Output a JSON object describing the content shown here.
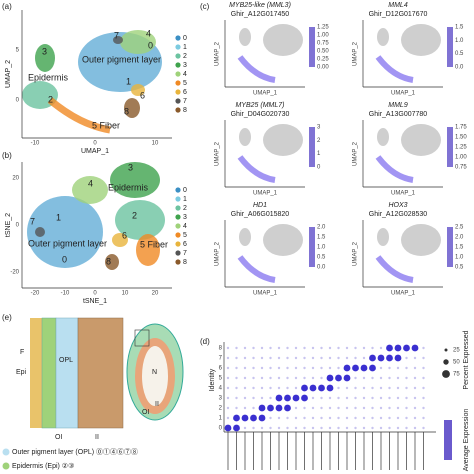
{
  "panel_a": {
    "label": "(a)",
    "ylabel": "UMAP_2",
    "xlabel": "UMAP_1",
    "xticks": [
      "-10",
      "0",
      "10"
    ],
    "yticks": [
      "5",
      "0"
    ],
    "annotations": [
      "3",
      "Epidermis",
      "Outer pigment layer",
      "7",
      "0",
      "4",
      "1",
      "2",
      "6",
      "8",
      "5 Fiber"
    ]
  },
  "panel_b": {
    "label": "(b)",
    "ylabel": "tSNE_2",
    "xlabel": "tSNE_1",
    "xticks": [
      "-20",
      "-10",
      "0",
      "10",
      "20"
    ],
    "yticks": [
      "20",
      "0",
      "-20"
    ],
    "annotations": [
      "3",
      "4",
      "Epidermis",
      "7",
      "1",
      "2",
      "Outer pigment layer",
      "0",
      "5 Fiber",
      "6",
      "8"
    ]
  },
  "clusters": [
    {
      "label": "0",
      "color": "#3b8fc4"
    },
    {
      "label": "1",
      "color": "#7ccbe0"
    },
    {
      "label": "2",
      "color": "#6cc3a0"
    },
    {
      "label": "3",
      "color": "#3fa34d"
    },
    {
      "label": "4",
      "color": "#9fd27a"
    },
    {
      "label": "5",
      "color": "#f08a24"
    },
    {
      "label": "6",
      "color": "#e8b43c"
    },
    {
      "label": "7",
      "color": "#555555"
    },
    {
      "label": "8",
      "color": "#8a5a2b"
    }
  ],
  "panel_c": {
    "label": "(c)",
    "ylabel": "UMAP_2",
    "xlabel": "UMAP_1",
    "plots": [
      {
        "gene": "MYB25-like (MML3)",
        "id": "Ghir_A12G017450",
        "scale": [
          "1.25",
          "1.00",
          "0.75",
          "0.50",
          "0.25",
          "0.00"
        ]
      },
      {
        "gene": "MML4",
        "id": "Ghir_D12G017670",
        "scale": [
          "1.5",
          "1.0",
          "0.5",
          "0.0"
        ]
      },
      {
        "gene": "MYB25 (MML7)",
        "id": "Ghir_D04G020730",
        "scale": [
          "3",
          "2",
          "1",
          "0"
        ]
      },
      {
        "gene": "MML9",
        "id": "Ghir_A13G007780",
        "scale": [
          "1.75",
          "1.50",
          "1.25",
          "1.00",
          "0.75"
        ]
      },
      {
        "gene": "HD1",
        "id": "Ghir_A06G015820",
        "scale": [
          "2.0",
          "1.5",
          "1.0",
          "0.5",
          "0.0"
        ]
      },
      {
        "gene": "HOX3",
        "id": "Ghir_A12G028530",
        "scale": [
          "2.5",
          "2.0",
          "1.5",
          "1.0",
          "0.5"
        ]
      }
    ]
  },
  "panel_d": {
    "label": "(d)",
    "ylabel": "Identity",
    "identities": [
      "8",
      "7",
      "6",
      "5",
      "4",
      "3",
      "2",
      "1",
      "0"
    ],
    "size_title": "Percent Expressed",
    "sizes": [
      "25",
      "50",
      "75"
    ],
    "color_title": "Average Expression"
  },
  "panel_e": {
    "label": "(e)",
    "labels": [
      "F",
      "Epi",
      "OPL",
      "OI",
      "II",
      "N",
      "OI",
      "II"
    ],
    "legend": [
      "Outer pigment layer (OPL) ⓪①④⑥⑦⑧",
      "Epidermis (Epi) ②③"
    ]
  }
}
